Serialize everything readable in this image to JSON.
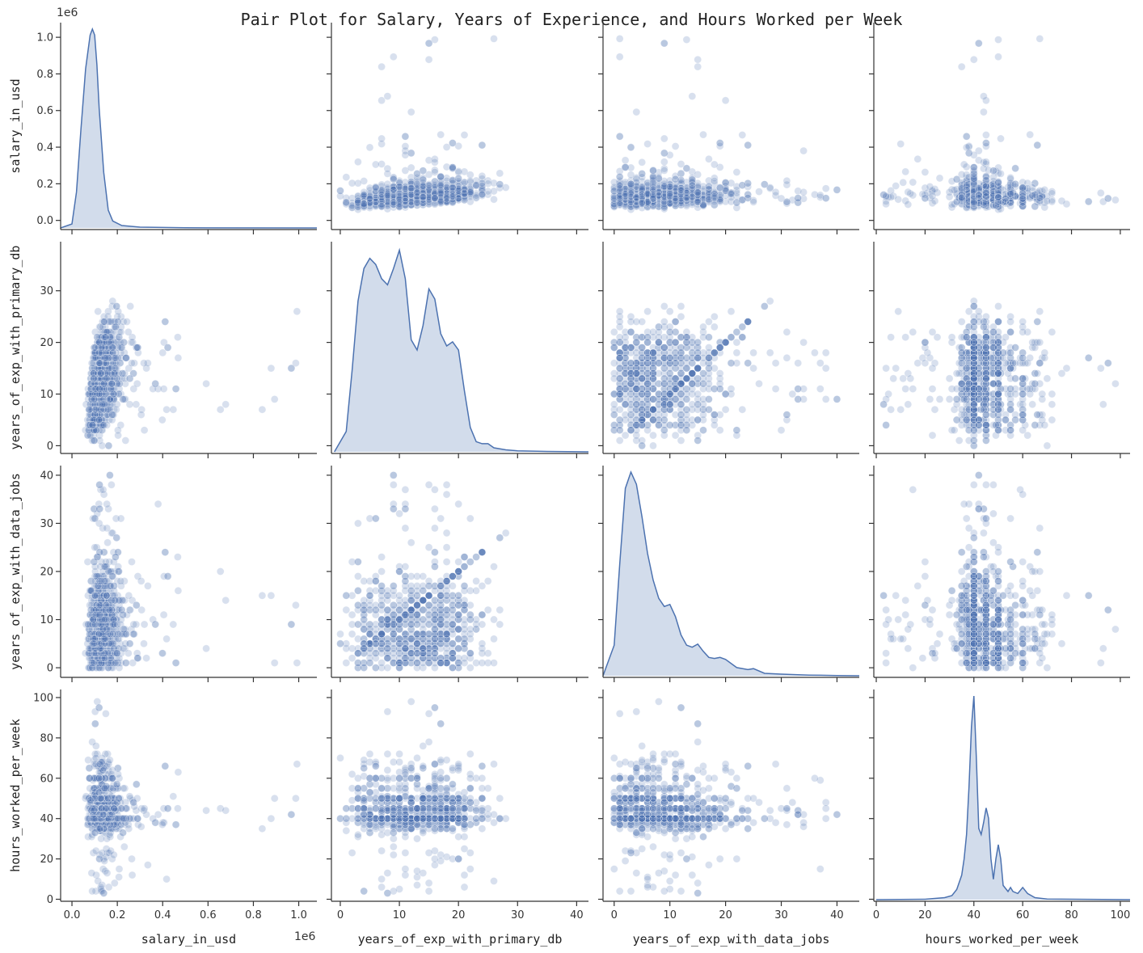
{
  "chart_data": {
    "type": "pairplot",
    "title": "Pair Plot for Salary, Years of Experience, and Hours Worked per Week",
    "point_color": "#4c72b0",
    "variables": [
      {
        "key": "salary",
        "label": "salary_in_usd",
        "range": [
          -0.05,
          1.08
        ],
        "ticks": [
          0.0,
          0.2,
          0.4,
          0.6,
          0.8,
          1.0
        ],
        "tick_labels": [
          "0.0",
          "0.2",
          "0.4",
          "0.6",
          "0.8",
          "1.0"
        ],
        "offset": "1e6"
      },
      {
        "key": "yp",
        "label": "years_of_exp_with_primary_db",
        "range": [
          -1.5,
          42
        ],
        "ticks": [
          0,
          10,
          20,
          30,
          40
        ],
        "tick_labels": [
          "0",
          "10",
          "20",
          "30",
          "40"
        ],
        "y_range": [
          -1.5,
          39.5
        ],
        "y_ticks": [
          0,
          10,
          20,
          30
        ],
        "y_tick_labels": [
          "0",
          "10",
          "20",
          "30"
        ]
      },
      {
        "key": "yd",
        "label": "years_of_exp_with_data_jobs",
        "range": [
          -2,
          44
        ],
        "ticks": [
          0,
          10,
          20,
          30,
          40
        ],
        "tick_labels": [
          "0",
          "10",
          "20",
          "30",
          "40"
        ],
        "y_range": [
          -2,
          42
        ],
        "y_ticks": [
          0,
          10,
          20,
          30,
          40
        ],
        "y_tick_labels": [
          "0",
          "10",
          "20",
          "30",
          "40"
        ]
      },
      {
        "key": "hw",
        "label": "hours_worked_per_week",
        "range": [
          -1,
          104
        ],
        "ticks": [
          0,
          20,
          40,
          60,
          80,
          100
        ],
        "tick_labels": [
          "0",
          "20",
          "40",
          "60",
          "80",
          "100"
        ]
      }
    ],
    "kde": [
      {
        "x": [
          -0.05,
          0.0,
          0.02,
          0.04,
          0.06,
          0.08,
          0.09,
          0.1,
          0.11,
          0.12,
          0.14,
          0.16,
          0.18,
          0.22,
          0.3,
          0.5,
          1.08
        ],
        "y": [
          0,
          0.02,
          0.18,
          0.5,
          0.8,
          0.97,
          1.0,
          0.97,
          0.82,
          0.6,
          0.28,
          0.09,
          0.035,
          0.012,
          0.004,
          0.001,
          0
        ]
      },
      {
        "x": [
          -1,
          1,
          2,
          3,
          4,
          5,
          6,
          7,
          8,
          9,
          10,
          11,
          12,
          13,
          14,
          15,
          16,
          17,
          18,
          19,
          20,
          21,
          22,
          23,
          24,
          25,
          26,
          28,
          30,
          35,
          42
        ],
        "y": [
          0,
          0.1,
          0.4,
          0.74,
          0.9,
          0.95,
          0.92,
          0.85,
          0.82,
          0.9,
          0.99,
          0.85,
          0.55,
          0.5,
          0.62,
          0.8,
          0.75,
          0.58,
          0.52,
          0.54,
          0.5,
          0.3,
          0.12,
          0.05,
          0.04,
          0.04,
          0.02,
          0.01,
          0.005,
          0.002,
          0
        ]
      },
      {
        "x": [
          -2,
          0,
          1,
          2,
          3,
          4,
          5,
          6,
          7,
          8,
          9,
          10,
          11,
          12,
          13,
          14,
          15,
          16,
          17,
          18,
          19,
          20,
          22,
          24,
          25,
          27,
          30,
          35,
          40,
          44
        ],
        "y": [
          0,
          0.15,
          0.55,
          0.92,
          1.0,
          0.94,
          0.78,
          0.6,
          0.47,
          0.38,
          0.34,
          0.35,
          0.29,
          0.2,
          0.15,
          0.14,
          0.155,
          0.12,
          0.09,
          0.085,
          0.09,
          0.08,
          0.04,
          0.03,
          0.035,
          0.012,
          0.008,
          0.003,
          0.001,
          0
        ]
      },
      {
        "x": [
          0,
          20,
          28,
          31,
          33,
          35,
          36,
          37,
          38,
          39,
          40,
          41,
          42,
          43,
          44,
          45,
          46,
          47,
          48,
          49,
          50,
          51,
          52,
          54,
          55,
          56,
          58,
          60,
          62,
          65,
          70,
          104
        ],
        "y": [
          0,
          0.002,
          0.01,
          0.02,
          0.05,
          0.12,
          0.2,
          0.32,
          0.55,
          0.85,
          1.0,
          0.7,
          0.35,
          0.32,
          0.38,
          0.45,
          0.4,
          0.2,
          0.1,
          0.2,
          0.27,
          0.2,
          0.07,
          0.04,
          0.06,
          0.04,
          0.03,
          0.06,
          0.03,
          0.01,
          0.003,
          0
        ]
      }
    ]
  }
}
